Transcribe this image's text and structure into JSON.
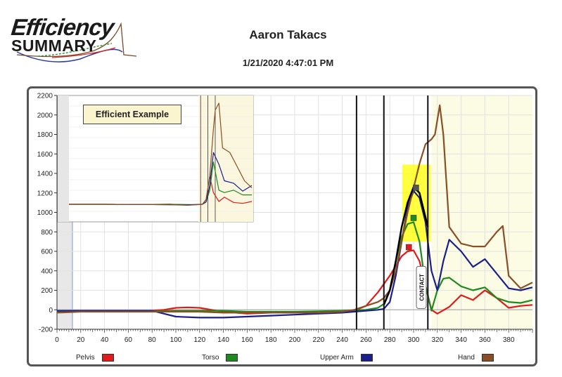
{
  "header": {
    "logo_line1": "Efficiency",
    "logo_line2": "SUMMARY",
    "athlete_name": "Aaron Takacs",
    "timestamp": "1/21/2020 4:47:01 PM"
  },
  "inset": {
    "label": "Efficient Example"
  },
  "annotation": {
    "contact_label": "CONTACT"
  },
  "colors": {
    "pelvis": "#e11b1b",
    "torso": "#1e8a1e",
    "upper_arm": "#1a1f8c",
    "hand": "#8a4f24",
    "highlight": "#ffff00",
    "shaded_region": "#fcfbe4"
  },
  "chart_data": [
    {
      "type": "line",
      "title": "",
      "xlabel": "",
      "ylabel": "",
      "xlim": [
        0,
        400
      ],
      "ylim": [
        -200,
        2200
      ],
      "x_ticks": [
        0,
        20,
        40,
        60,
        80,
        100,
        120,
        140,
        160,
        180,
        200,
        220,
        240,
        260,
        280,
        300,
        320,
        340,
        360,
        380
      ],
      "y_ticks": [
        -200,
        0,
        200,
        400,
        600,
        800,
        1000,
        1200,
        1400,
        1600,
        1800,
        2000,
        2200
      ],
      "grid": true,
      "legend_position": "bottom",
      "vertical_markers": [
        252,
        275,
        312
      ],
      "left_shaded_range": [
        0,
        13
      ],
      "shaded_range": [
        315,
        400
      ],
      "series": [
        {
          "name": "Pelvis",
          "color": "#e11b1b",
          "x": [
            0,
            20,
            40,
            60,
            80,
            90,
            100,
            110,
            120,
            130,
            140,
            160,
            180,
            200,
            220,
            240,
            250,
            260,
            270,
            280,
            290,
            295,
            300,
            305,
            310,
            315,
            320,
            330,
            340,
            350,
            360,
            370,
            380,
            390,
            400
          ],
          "y": [
            -10,
            -10,
            -10,
            -10,
            -10,
            0,
            20,
            25,
            20,
            0,
            -20,
            -40,
            -30,
            -30,
            -30,
            -20,
            -10,
            40,
            180,
            350,
            550,
            600,
            610,
            500,
            250,
            0,
            -40,
            30,
            150,
            100,
            200,
            120,
            20,
            40,
            50
          ]
        },
        {
          "name": "Torso",
          "color": "#1e8a1e",
          "x": [
            0,
            20,
            40,
            60,
            80,
            100,
            120,
            140,
            160,
            180,
            200,
            220,
            240,
            250,
            260,
            270,
            275,
            280,
            285,
            290,
            295,
            300,
            305,
            310,
            315,
            320,
            325,
            330,
            340,
            350,
            360,
            370,
            380,
            390,
            400
          ],
          "y": [
            -20,
            -15,
            -15,
            -15,
            -15,
            -10,
            -10,
            -10,
            -20,
            -20,
            -20,
            -15,
            -10,
            -5,
            0,
            20,
            60,
            200,
            500,
            750,
            880,
            900,
            700,
            250,
            -10,
            200,
            320,
            330,
            240,
            200,
            230,
            120,
            80,
            70,
            100
          ]
        },
        {
          "name": "Upper Arm",
          "color": "#1a1f8c",
          "x": [
            0,
            20,
            40,
            60,
            80,
            90,
            100,
            120,
            140,
            160,
            180,
            200,
            220,
            240,
            250,
            260,
            270,
            275,
            280,
            285,
            290,
            295,
            300,
            305,
            310,
            315,
            320,
            325,
            330,
            340,
            350,
            360,
            370,
            380,
            390,
            400
          ],
          "y": [
            -10,
            -10,
            -10,
            -10,
            -10,
            -40,
            -70,
            -80,
            -80,
            -70,
            -60,
            -50,
            -40,
            -30,
            -20,
            -10,
            0,
            10,
            80,
            350,
            700,
            1050,
            1220,
            1150,
            900,
            400,
            200,
            500,
            720,
            600,
            440,
            520,
            370,
            220,
            200,
            230
          ]
        },
        {
          "name": "Hand",
          "color": "#8a4f24",
          "x": [
            0,
            20,
            40,
            60,
            80,
            100,
            120,
            140,
            160,
            180,
            200,
            220,
            240,
            250,
            260,
            270,
            275,
            280,
            285,
            290,
            295,
            300,
            305,
            310,
            315,
            318,
            322,
            325,
            330,
            340,
            350,
            360,
            370,
            375,
            380,
            390,
            400
          ],
          "y": [
            -30,
            -20,
            -20,
            -20,
            -20,
            -20,
            -20,
            -30,
            -30,
            -30,
            -30,
            -30,
            -20,
            0,
            40,
            80,
            120,
            200,
            400,
            700,
            1000,
            1250,
            1500,
            1700,
            1750,
            1800,
            2100,
            1800,
            850,
            680,
            650,
            650,
            800,
            860,
            350,
            220,
            280
          ]
        },
        {
          "name": "",
          "color": "#000000",
          "x": [
            275,
            280,
            285,
            290,
            295,
            300,
            305,
            310,
            312
          ],
          "y": [
            50,
            200,
            500,
            850,
            1100,
            1260,
            1200,
            950,
            850
          ]
        }
      ]
    },
    {
      "type": "line",
      "title": "Efficient Example",
      "shaded_range": [
        0.72,
        1.0
      ],
      "vertical_markers": [
        0.72,
        0.76,
        0.8
      ],
      "series": [
        {
          "name": "Pelvis",
          "color": "#e11b1b",
          "x": [
            0,
            0.2,
            0.4,
            0.55,
            0.65,
            0.7,
            0.73,
            0.75,
            0.77,
            0.79,
            0.82,
            0.85,
            0.9,
            0.95,
            1.0
          ],
          "y": [
            0,
            0,
            -5,
            5,
            -20,
            -5,
            5,
            100,
            600,
            250,
            60,
            150,
            40,
            20,
            60
          ]
        },
        {
          "name": "Torso",
          "color": "#1e8a1e",
          "x": [
            0,
            0.2,
            0.4,
            0.55,
            0.65,
            0.7,
            0.73,
            0.75,
            0.77,
            0.79,
            0.82,
            0.85,
            0.9,
            0.95,
            1.0
          ],
          "y": [
            0,
            0,
            -5,
            0,
            -5,
            -5,
            0,
            50,
            300,
            900,
            300,
            250,
            300,
            200,
            200
          ]
        },
        {
          "name": "Upper Arm",
          "color": "#1a1f8c",
          "x": [
            0,
            0.2,
            0.4,
            0.55,
            0.65,
            0.7,
            0.73,
            0.75,
            0.77,
            0.79,
            0.82,
            0.85,
            0.9,
            0.95,
            1.0
          ],
          "y": [
            0,
            0,
            -5,
            -10,
            -10,
            -5,
            0,
            50,
            400,
            1100,
            850,
            500,
            450,
            280,
            400
          ]
        },
        {
          "name": "Hand",
          "color": "#8a4f24",
          "x": [
            0,
            0.2,
            0.4,
            0.55,
            0.65,
            0.7,
            0.73,
            0.75,
            0.77,
            0.79,
            0.8,
            0.82,
            0.84,
            0.88,
            0.92,
            0.96,
            1.0
          ],
          "y": [
            0,
            0,
            -5,
            -10,
            -20,
            -10,
            0,
            100,
            600,
            1600,
            2000,
            2150,
            1200,
            1100,
            800,
            500,
            350
          ]
        }
      ]
    }
  ]
}
